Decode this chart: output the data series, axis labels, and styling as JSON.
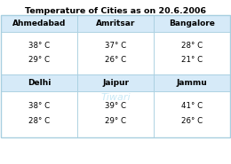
{
  "title": "Temperature of Cities as on 20.6.2006",
  "col1_header": "Ahmedabad",
  "col2_header": "Amritsar",
  "col3_header": "Bangalore",
  "col1_max": "38° C",
  "col1_min": "29° C",
  "col2_max": "37° C",
  "col2_min": "26° C",
  "col3_max": "28° C",
  "col3_min": "21° C",
  "col4_header": "Delhi",
  "col5_header": "Jaipur",
  "col6_header": "Jammu",
  "col4_max": "38° C",
  "col4_min": "28° C",
  "col5_max": "39° C",
  "col5_min": "29° C",
  "col6_max": "41° C",
  "col6_min": "26° C",
  "bg_color": "#ffffff",
  "header_bg": "#d6eaf8",
  "border_color": "#a8cfe0",
  "title_fontsize": 6.8,
  "header_fontsize": 6.5,
  "cell_fontsize": 6.2,
  "watermark": "Tiwari"
}
